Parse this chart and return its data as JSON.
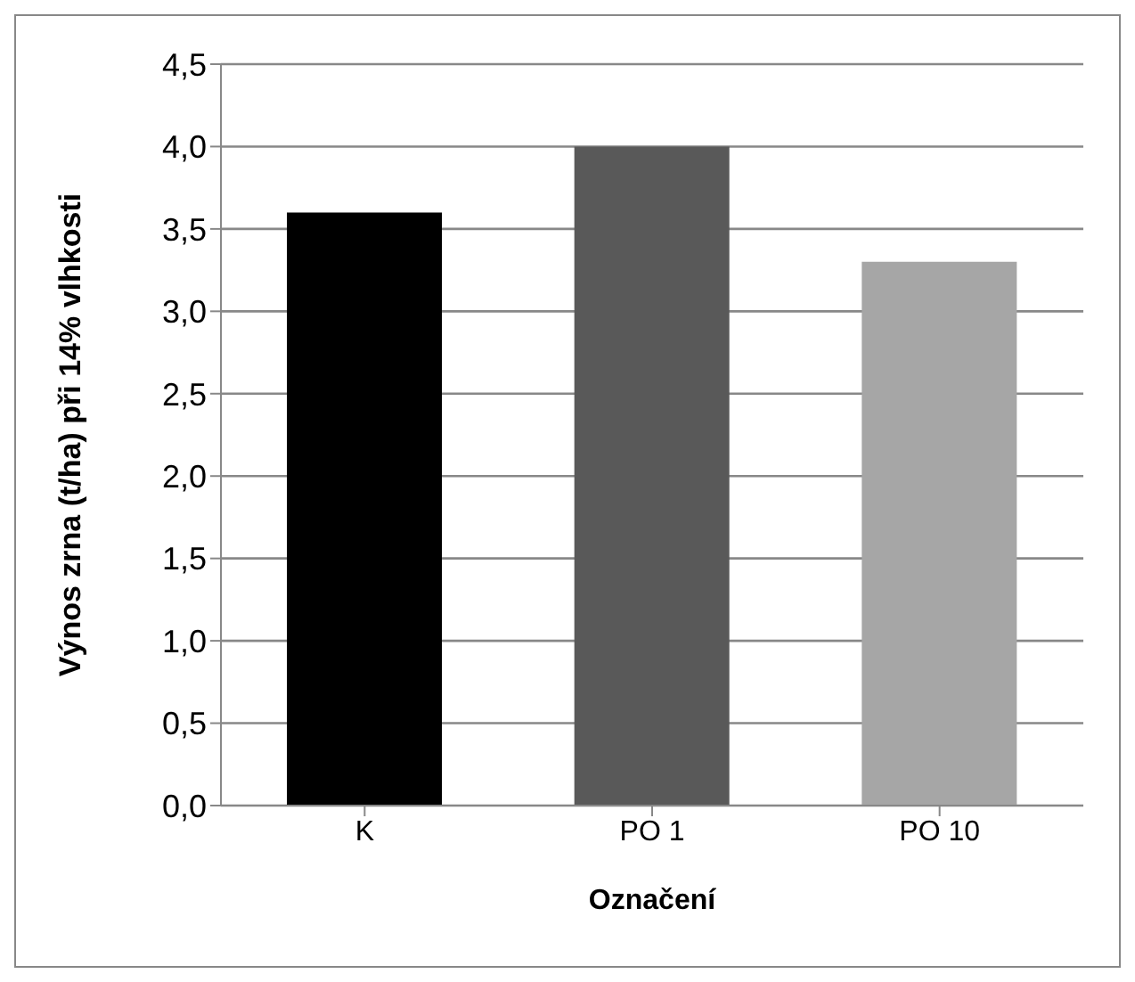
{
  "chart_data": {
    "type": "bar",
    "xlabel": "Označení",
    "ylabel": "Výnos zrna (t/ha) při 14% vlhkosti",
    "categories": [
      "K",
      "PO 1",
      "PO 10"
    ],
    "values": [
      3.6,
      4.0,
      3.3
    ],
    "colors": [
      "#000000",
      "#595959",
      "#a6a6a6"
    ],
    "ylim": [
      0,
      4.5
    ],
    "yticks": [
      {
        "value": 0,
        "label": "0,0"
      },
      {
        "value": 0.5,
        "label": "0,5"
      },
      {
        "value": 1,
        "label": "1,0"
      },
      {
        "value": 1.5,
        "label": "1,5"
      },
      {
        "value": 2,
        "label": "2,0"
      },
      {
        "value": 2.5,
        "label": "2,5"
      },
      {
        "value": 3,
        "label": "3,0"
      },
      {
        "value": 3.5,
        "label": "3,5"
      },
      {
        "value": 4,
        "label": "4,0"
      },
      {
        "value": 4.5,
        "label": "4,5"
      }
    ],
    "grid": "y",
    "legend": false
  }
}
